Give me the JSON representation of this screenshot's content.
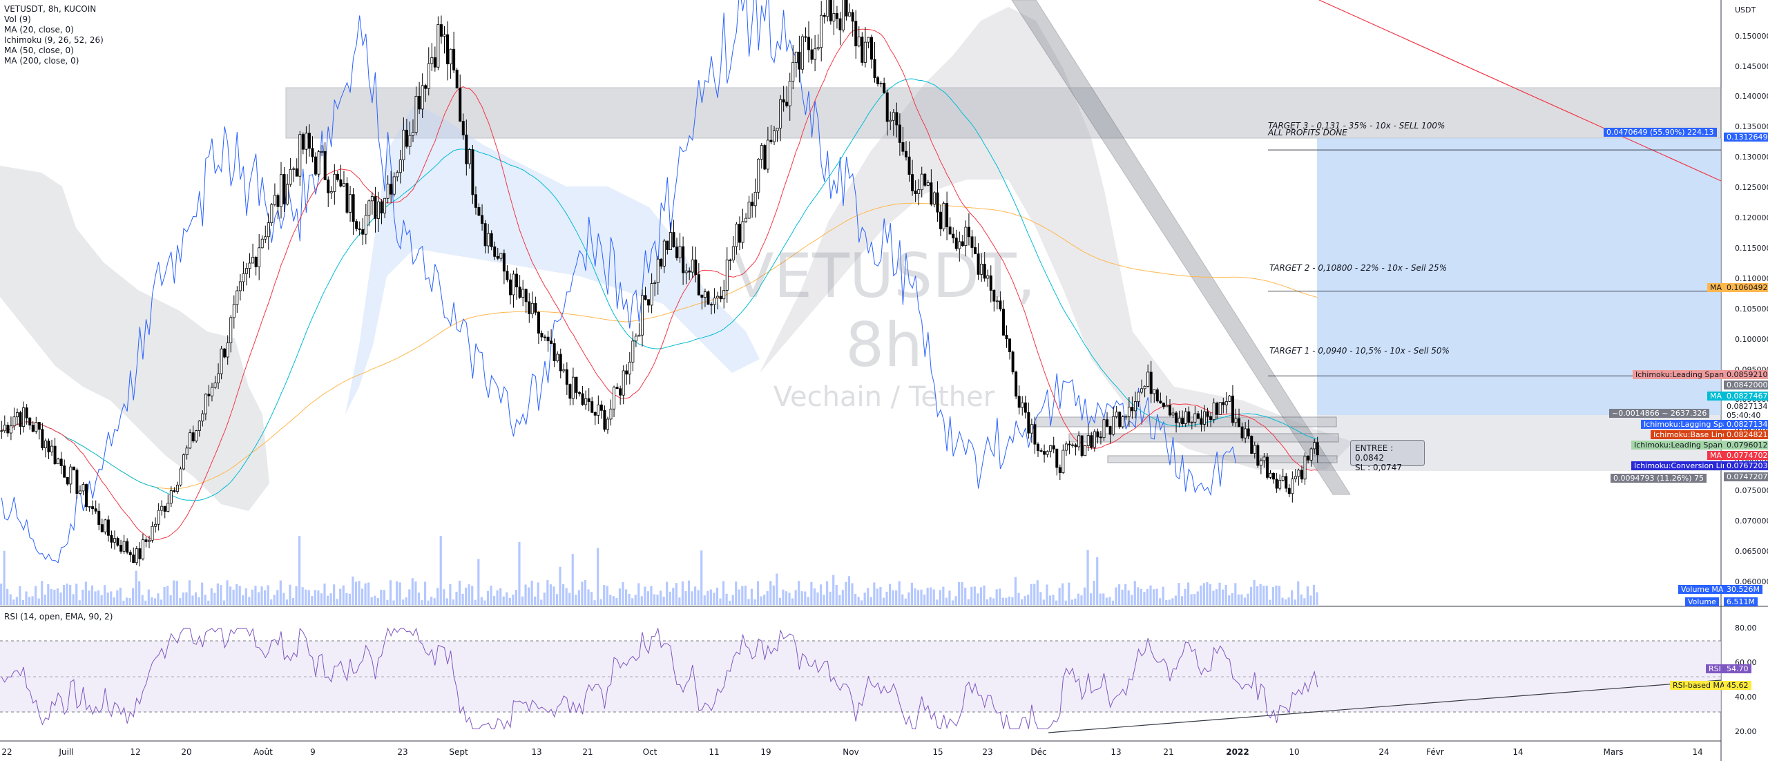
{
  "legend": {
    "symbol": "VETUSDT, 8h, KUCOIN",
    "indicators": [
      "Vol (9)",
      "MA (20, close, 0)",
      "Ichimoku (9, 26, 52, 26)",
      "MA (50, close, 0)",
      "MA (200, close, 0)"
    ]
  },
  "rsi_legend": "RSI (14, open, EMA, 90, 2)",
  "watermark": {
    "symbol": "VETUSDT, 8h",
    "description": "Vechain / Tether"
  },
  "currency": "USDT",
  "annotations": {
    "target3_line1": "TARGET 3 - 0,131 - 35% - 10x - SELL 100%",
    "target3_line2": "ALL PROFITS DONE",
    "target2": "TARGET 2 - 0,10800 - 22% - 10x - Sell 25%",
    "target1": "TARGET 1 - 0,0940 - 10,5% - 10x - Sell 50%",
    "entry_line1": "ENTREE : 0.0842",
    "entry_line2": "SL : 0,0747",
    "range_label": "~0.0014866 ~ 2637.326",
    "long_profit": "0.0470649 (55.90%) 224.13",
    "long_risk": "0.0094793 (11.26%) 75"
  },
  "price_axis": [
    "0.1500000",
    "0.1450000",
    "0.1400000",
    "0.1350000",
    "0.1300000",
    "0.1250000",
    "0.1200000",
    "0.1150000",
    "0.1100000",
    "0.1050000",
    "0.1000000",
    "0.0950000",
    "0.0900000",
    "0.0850000",
    "0.0800000",
    "0.0750000",
    "0.0700000",
    "0.0650000",
    "0.0600000"
  ],
  "rsi_axis": [
    "80.00",
    "60.00",
    "40.00",
    "20.00"
  ],
  "price_tags": {
    "target": "0.1312649",
    "ma200_name": "MA",
    "ma200": "0.1060492",
    "leading_b_name": "Ichimoku:Leading Span B",
    "leading_b": "0.0859210",
    "entry": "0.0842000",
    "ma50_name": "MA",
    "ma50": "0.0827467",
    "close": "0.0827134",
    "countdown": "05:40:40",
    "lagging_name": "Ichimoku:Lagging Span",
    "lagging": "0.0827134",
    "base_name": "Ichimoku:Base Line",
    "base": "0.0824821",
    "leading_a_name": "Ichimoku:Leading Span A",
    "leading_a": "0.0796012",
    "ma20_name": "MA",
    "ma20": "0.0774702",
    "conversion_name": "Ichimoku:Conversion Line",
    "conversion": "0.0767203",
    "stop": "0.0747207",
    "vol_ma_name": "Volume MA",
    "vol_ma": "30.526M",
    "volume_name": "Volume",
    "volume": "6.511M",
    "rsi_name": "RSI",
    "rsi": "54.70",
    "rsi_ma_name": "RSI-based MA",
    "rsi_ma": "45.62"
  },
  "time_axis": [
    "22",
    "Juill",
    "12",
    "20",
    "Août",
    "9",
    "23",
    "Sept",
    "13",
    "21",
    "Oct",
    "11",
    "19",
    "Nov",
    "15",
    "23",
    "Déc",
    "13",
    "21",
    "2022",
    "10",
    "24",
    "Févr",
    "14",
    "Mars",
    "14"
  ],
  "colors": {
    "up": "#ffffff",
    "down": "#000000",
    "ma20": "#f23645",
    "ma50": "#00bcd4",
    "ma200": "#ffb74d",
    "lagging": "#2962ff",
    "rsi": "#7e57c2",
    "target_zone": "#bbd5f7",
    "rsi_band": "#ede7f6"
  },
  "chart_data": {
    "type": "candlestick",
    "symbol": "VETUSDT",
    "interval": "8h",
    "exchange": "KUCOIN",
    "ylim": [
      0.056,
      0.156
    ],
    "series_closes_approx": [
      0.085,
      0.088,
      0.086,
      0.083,
      0.079,
      0.076,
      0.072,
      0.068,
      0.066,
      0.064,
      0.069,
      0.074,
      0.08,
      0.086,
      0.093,
      0.101,
      0.109,
      0.116,
      0.122,
      0.127,
      0.132,
      0.129,
      0.126,
      0.122,
      0.12,
      0.123,
      0.128,
      0.136,
      0.144,
      0.151,
      0.142,
      0.128,
      0.118,
      0.112,
      0.108,
      0.104,
      0.099,
      0.094,
      0.091,
      0.088,
      0.087,
      0.093,
      0.102,
      0.11,
      0.116,
      0.113,
      0.11,
      0.106,
      0.112,
      0.12,
      0.128,
      0.135,
      0.141,
      0.147,
      0.151,
      0.155,
      0.152,
      0.148,
      0.143,
      0.135,
      0.128,
      0.124,
      0.121,
      0.118,
      0.115,
      0.112,
      0.105,
      0.093,
      0.086,
      0.081,
      0.08,
      0.082,
      0.084,
      0.085,
      0.088,
      0.091,
      0.093,
      0.09,
      0.087,
      0.086,
      0.088,
      0.09,
      0.085,
      0.081,
      0.078,
      0.076,
      0.079,
      0.0827
    ],
    "levels": {
      "target3": 0.1312649,
      "target2": 0.108,
      "target1": 0.094,
      "entry": 0.0842,
      "stop": 0.0747
    },
    "rsi_ylim": [
      15,
      90
    ],
    "rsi_bands": [
      30,
      50,
      70
    ]
  }
}
